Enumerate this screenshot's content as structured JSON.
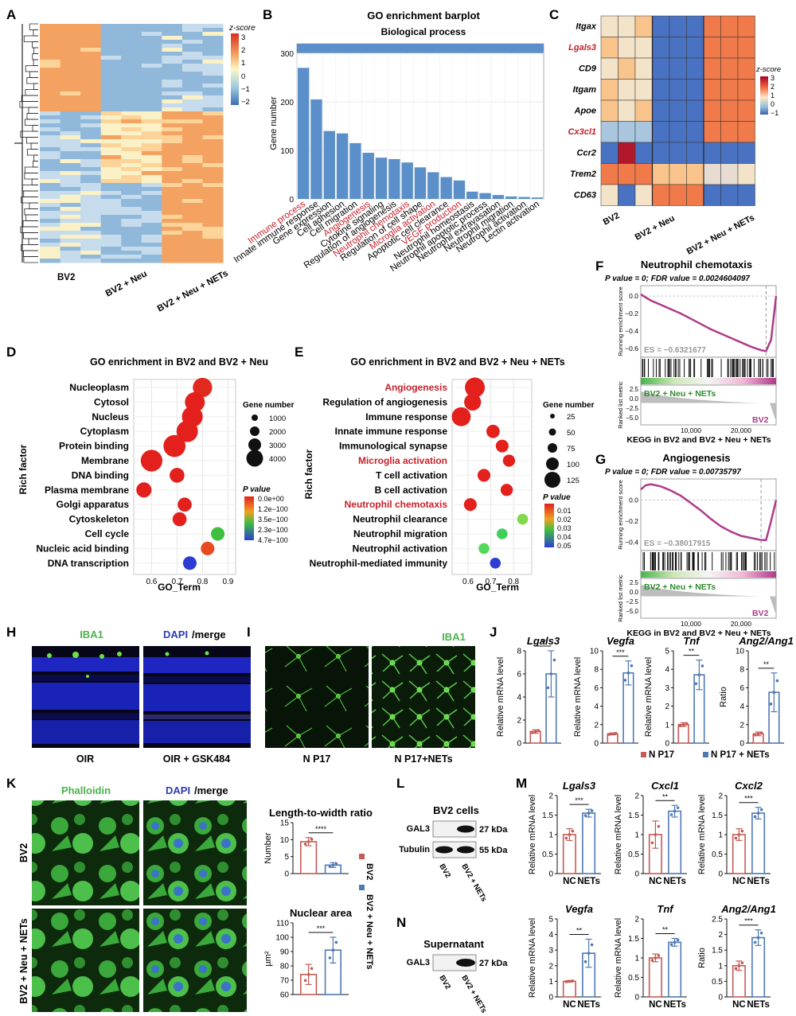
{
  "colors": {
    "bar_blue": "#5b8fc9",
    "red_label": "#c8202a",
    "green_label": "#4ab34a",
    "dapi_blue": "#2e3bb5",
    "ctrl_bar": "#c65a55",
    "treat_bar": "#4f79b5",
    "gsea_line": "#b03a8a"
  },
  "panel_letters": [
    "A",
    "B",
    "C",
    "D",
    "E",
    "F",
    "G",
    "H",
    "I",
    "J",
    "K",
    "L",
    "M",
    "N"
  ],
  "panelA": {
    "scale_title": "z-score",
    "scale_ticks": [
      "3",
      "2",
      "1",
      "0",
      "−1",
      "−2"
    ],
    "groups": [
      "BV2",
      "BV2 + Neu",
      "BV2 + Neu + NETs"
    ]
  },
  "panelB": {
    "title": "GO enrichment barplot",
    "subtitle": "Biological process",
    "ylabel": "Gene number",
    "terms": [
      "Immune process",
      "Innate immune response",
      "Gene expression",
      "Cell adhesion",
      "Cell migration",
      "Angiogenesis",
      "Cytokine signaling",
      "Regulation of angiogenesis",
      "Neutrophil chemotaxis",
      "Regulation of cell shape",
      "Microglia activation",
      "Apoptotic cell clearance",
      "VEGF production",
      "Neutrophil homeostasis",
      "Neutrophil apoptotic process",
      "Neutrophil extravasation",
      "Neutrophil migration",
      "Neutrophil activation",
      "Lectin activation"
    ],
    "highlighted": [
      "Immune process",
      "Angiogenesis",
      "Neutrophil chemotaxis",
      "Microglia activation",
      "VEGF production"
    ]
  },
  "panelC": {
    "genes": [
      "Itgax",
      "Lgals3",
      "CD9",
      "Itgam",
      "Apoe",
      "Cx3cl1",
      "Ccr2",
      "Trem2",
      "CD63"
    ],
    "highlighted": [
      "Lgals3",
      "Cx3cl1"
    ],
    "groups": [
      "BV2",
      "BV2 + Neu",
      "BV2 + Neu + NETs"
    ],
    "scale_title": "z-score",
    "scale_ticks": [
      "3",
      "2",
      "1",
      "0",
      "−1"
    ]
  },
  "panelD": {
    "title": "GO enrichment in BV2 and BV2 + Neu",
    "xlabel": "GO_Term",
    "ylabel": "Rich factor",
    "size_legend_title": "Gene number",
    "size_legend": [
      "1000",
      "2000",
      "3000",
      "4000"
    ],
    "p_legend_title": "P value",
    "p_legend": [
      "0.0e+00",
      "1.2e−100",
      "3.5e−100",
      "2.3e−100",
      "4.7e−100"
    ],
    "xticks": [
      "0.6",
      "0.7",
      "0.8",
      "0.9"
    ]
  },
  "panelE": {
    "title": "GO enrichment in BV2 and BV2 + Neu + NETs",
    "xlabel": "GO_Term",
    "ylabel": "Rich factor",
    "size_legend_title": "Gene number",
    "size_legend": [
      "25",
      "50",
      "75",
      "100",
      "125"
    ],
    "p_legend_title": "P value",
    "p_legend": [
      "0.01",
      "0.02",
      "0.03",
      "0.04",
      "0.05"
    ],
    "xticks": [
      "0.6",
      "0.7",
      "0.8"
    ],
    "highlighted": [
      "Angiogenesis",
      "Microglia activation",
      "Neutrophil chemotaxis"
    ]
  },
  "panelF": {
    "title": "Neutrophil chemotaxis",
    "stats": "P value = 0; FDR value = 0.0024604097",
    "es": "ES = −0.6321677",
    "ylabel_top": "Running enrichment score",
    "ylabel_bottom": "Ranked list metric",
    "yticks_top": [
      "0.0",
      "−0.2",
      "−0.4",
      "−0.6"
    ],
    "yticks_bottom": [
      "2.5",
      "0.0",
      "−2.5",
      "−5.0"
    ],
    "xticks": [
      "10,000",
      "20,000"
    ],
    "group_pos": "BV2 + Neu + NETs",
    "group_neg": "BV2",
    "xlabel": "KEGG in BV2 and BV2 + Neu + NETs"
  },
  "panelG": {
    "title": "Angiogenesis",
    "stats": "P value = 0; FDR value = 0.00735797",
    "es": "ES = −0.38017915",
    "ylabel_top": "Running enrichment score",
    "ylabel_bottom": "Ranked list metric",
    "yticks_top": [
      "0.0",
      "−0.2",
      "−0.4"
    ],
    "yticks_bottom": [
      "2.5",
      "0.0",
      "−2.5",
      "−5.0"
    ],
    "xticks": [
      "10,000",
      "20,000"
    ],
    "group_pos": "BV2 + Neu + NETs",
    "group_neg": "BV2",
    "xlabel": "KEGG in BV2 and BV2 + Neu + NETs"
  },
  "panelH": {
    "label_green": "IBA1",
    "label_blue": "DAPI",
    "label_merge": "/merge",
    "left": "OIR",
    "right": "OIR + GSK484"
  },
  "panelI": {
    "label": "IBA1",
    "left": "N P17",
    "right": "N P17+NETs"
  },
  "panelK": {
    "label_green": "Phalloidin",
    "label_blue": "DAPI",
    "label_merge": "/merge",
    "row1": "BV2",
    "row2": "BV2 + Neu + NETs"
  },
  "panelL": {
    "title": "BV2 cells",
    "bands": [
      "GAL3",
      "Tubulin"
    ],
    "kda": [
      "27 kDa",
      "55 kDa"
    ],
    "lanes": [
      "BV2",
      "BV2 + NETs"
    ]
  },
  "panelM": {
    "title": "Supernatant",
    "bands": [
      "GAL3"
    ],
    "kda": [
      "27 kDa"
    ],
    "lanes": [
      "BV2",
      "BV2 + NETs"
    ]
  },
  "panelJ_legend": [
    "N P17",
    "N P17 + NETs"
  ],
  "panelK_legend": [
    "BV2",
    "BV2 + Neu + NETs"
  ],
  "chart_data": [
    {
      "id": "B",
      "type": "bar",
      "title": "GO enrichment barplot",
      "subtitle": "Biological process",
      "ylabel": "Gene number",
      "categories": [
        "Immune process",
        "Innate immune response",
        "Gene expression",
        "Cell adhesion",
        "Cell migration",
        "Angiogenesis",
        "Cytokine signaling",
        "Regulation of angiogenesis",
        "Neutrophil chemotaxis",
        "Regulation of cell shape",
        "Microglia activation",
        "Apoptotic cell clearance",
        "VEGF production",
        "Neutrophil homeostasis",
        "Neutrophil apoptotic process",
        "Neutrophil extravasation",
        "Neutrophil migration",
        "Neutrophil activation",
        "Lectin activation"
      ],
      "values": [
        270,
        205,
        140,
        135,
        115,
        95,
        85,
        82,
        75,
        65,
        55,
        45,
        38,
        15,
        12,
        8,
        5,
        4,
        3
      ],
      "ylim": [
        0,
        300
      ],
      "yticks": [
        0,
        100,
        200,
        300
      ]
    },
    {
      "id": "C",
      "type": "heatmap",
      "rows": [
        "Itgax",
        "Lgals3",
        "CD9",
        "Itgam",
        "Apoe",
        "Cx3cl1",
        "Ccr2",
        "Trem2",
        "CD63"
      ],
      "values": [
        [
          0.4,
          0.2,
          0.6,
          -1,
          -1,
          -1,
          1.5,
          1.4,
          1.6
        ],
        [
          0.5,
          0.4,
          0.3,
          -1,
          -1,
          -1,
          1.3,
          1.5,
          1.3
        ],
        [
          0.3,
          0.5,
          0.4,
          -1,
          -1,
          -1,
          1.6,
          1.4,
          1.5
        ],
        [
          0.6,
          0.3,
          0.4,
          -1,
          -1,
          -1,
          1.4,
          1.5,
          1.3
        ],
        [
          0.5,
          0.4,
          0.6,
          -1,
          -1,
          -1,
          1.3,
          1.6,
          1.4
        ],
        [
          -0.4,
          -0.3,
          -0.5,
          -1,
          -1,
          -1,
          1.5,
          1.4,
          1.6
        ],
        [
          -0.8,
          3.0,
          -0.6,
          -0.9,
          -0.7,
          -0.9,
          -0.6,
          -0.8,
          -0.7
        ],
        [
          1.5,
          1.4,
          1.6,
          0.8,
          0.9,
          0.7,
          0.1,
          0.0,
          0.2
        ],
        [
          0.4,
          -0.6,
          0.2,
          1.4,
          1.5,
          1.6,
          -1,
          -0.9,
          -1
        ]
      ]
    },
    {
      "id": "D",
      "type": "scatter",
      "terms": [
        "Nucleoplasm",
        "Cytosol",
        "Nucleus",
        "Cytoplasm",
        "Protein binding",
        "Membrane",
        "DNA binding",
        "Plasma membrane",
        "Golgi apparatus",
        "Cytoskeleton",
        "Cell cycle",
        "Nucleic acid binding",
        "DNA transcription"
      ],
      "x": [
        0.8,
        0.77,
        0.76,
        0.74,
        0.69,
        0.6,
        0.7,
        0.57,
        0.73,
        0.71,
        0.86,
        0.82,
        0.75
      ],
      "size": [
        2600,
        2800,
        3200,
        3500,
        3800,
        3600,
        1100,
        1200,
        900,
        900,
        800,
        800,
        800
      ],
      "colors": [
        "#e02a1e",
        "#e3201c",
        "#e3201c",
        "#e3201c",
        "#e3201c",
        "#e3201c",
        "#e3201c",
        "#e3201c",
        "#e3201c",
        "#e3201c",
        "#3fbf3f",
        "#e84a1e",
        "#2d3dd4"
      ],
      "xlim": [
        0.53,
        0.93
      ]
    },
    {
      "id": "E",
      "type": "scatter",
      "terms": [
        "Angiogenesis",
        "Regulation of angiogenesis",
        "Immune response",
        "Innate immune response",
        "Immunological synapse",
        "Microglia activation",
        "T cell activation",
        "B cell activation",
        "Neutrophil chemotaxis",
        "Neutrophil clearance",
        "Neutrophil migration",
        "Neutrophil activation",
        "Neutrophil-mediated immunity"
      ],
      "x": [
        0.63,
        0.62,
        0.57,
        0.71,
        0.75,
        0.78,
        0.67,
        0.77,
        0.61,
        0.84,
        0.75,
        0.67,
        0.72
      ],
      "size": [
        125,
        80,
        110,
        40,
        35,
        30,
        35,
        30,
        35,
        20,
        20,
        20,
        20
      ],
      "colors": [
        "#e3201c",
        "#e3201c",
        "#e3201c",
        "#e3201c",
        "#e3201c",
        "#e3201c",
        "#e3201c",
        "#e3201c",
        "#e3201c",
        "#7fd94a",
        "#3fcf5a",
        "#55d95a",
        "#2d3dd4"
      ],
      "xlim": [
        0.53,
        0.88
      ]
    },
    {
      "id": "F",
      "type": "line",
      "title": "Neutrophil chemotaxis",
      "x": [
        0,
        2000,
        4000,
        6000,
        8000,
        10000,
        12000,
        14000,
        16000,
        18000,
        20000,
        22000,
        24000,
        25000,
        26000,
        27000
      ],
      "y": [
        0.02,
        -0.05,
        -0.1,
        -0.15,
        -0.2,
        -0.26,
        -0.32,
        -0.38,
        -0.43,
        -0.48,
        -0.53,
        -0.58,
        -0.62,
        -0.63,
        -0.5,
        0.0
      ],
      "xlim": [
        0,
        27000
      ],
      "ylim": [
        -0.7,
        0.12
      ]
    },
    {
      "id": "G",
      "type": "line",
      "title": "Angiogenesis",
      "x": [
        0,
        1000,
        2000,
        4000,
        6000,
        8000,
        10000,
        12000,
        14000,
        16000,
        18000,
        20000,
        22000,
        24000,
        25000,
        26000,
        27000
      ],
      "y": [
        0.1,
        0.14,
        0.15,
        0.13,
        0.09,
        0.04,
        -0.03,
        -0.1,
        -0.18,
        -0.25,
        -0.3,
        -0.34,
        -0.36,
        -0.38,
        -0.38,
        -0.2,
        0.0
      ],
      "xlim": [
        0,
        27000
      ],
      "ylim": [
        -0.48,
        0.2
      ]
    },
    {
      "id": "J",
      "type": "bar",
      "panels": [
        {
          "title": "Lgals3",
          "ylabel": "Relative mRNA level",
          "categories": [
            "N P17",
            "N P17 + NETs"
          ],
          "values": [
            1,
            6
          ],
          "err": [
            0.15,
            2
          ],
          "ylim": [
            0,
            8
          ],
          "yticks": [
            0,
            2,
            4,
            6,
            8
          ],
          "sig": "**"
        },
        {
          "title": "Vegfa",
          "ylabel": "Relative mRNA level",
          "categories": [
            "N P17",
            "N P17 + NETs"
          ],
          "values": [
            1,
            7.6
          ],
          "err": [
            0.1,
            1.3
          ],
          "ylim": [
            0,
            10
          ],
          "yticks": [
            0,
            2,
            4,
            6,
            8,
            10
          ],
          "sig": "***"
        },
        {
          "title": "Tnf",
          "ylabel": "Relative mRNA level",
          "categories": [
            "N P17",
            "N P17 + NETs"
          ],
          "values": [
            1,
            3.7
          ],
          "err": [
            0.1,
            0.8
          ],
          "ylim": [
            0,
            5
          ],
          "yticks": [
            0,
            1,
            2,
            3,
            4,
            5
          ],
          "sig": "**"
        },
        {
          "title": "Ang2/Ang1",
          "ylabel": "Ratio",
          "categories": [
            "N P17",
            "N P17 + NETs"
          ],
          "values": [
            1,
            5.5
          ],
          "err": [
            0.2,
            2.1
          ],
          "ylim": [
            0,
            10
          ],
          "yticks": [
            0,
            2,
            4,
            6,
            8,
            10
          ],
          "sig": "**"
        }
      ]
    },
    {
      "id": "K",
      "type": "bar",
      "panels": [
        {
          "title": "Length-to-width ratio",
          "ylabel": "Number",
          "categories": [
            "BV2",
            "BV2 + Neu + NETs"
          ],
          "values": [
            9.4,
            2.5
          ],
          "err": [
            1.2,
            0.7
          ],
          "ylim": [
            0,
            15
          ],
          "yticks": [
            0,
            5,
            10,
            15
          ],
          "sig": "****"
        },
        {
          "title": "Nuclear area",
          "ylabel": "µm²",
          "categories": [
            "BV2",
            "BV2 + Neu + NETs"
          ],
          "values": [
            74,
            91
          ],
          "err": [
            7,
            9
          ],
          "ylim": [
            60,
            110
          ],
          "yticks": [
            60,
            70,
            80,
            90,
            100,
            110
          ],
          "sig": "***"
        }
      ]
    },
    {
      "id": "N",
      "type": "bar",
      "panels": [
        {
          "title": "Lgals3",
          "ylabel": "Relative mRNA level",
          "categories": [
            "NC",
            "NETs"
          ],
          "values": [
            1.0,
            1.55
          ],
          "err": [
            0.15,
            0.1
          ],
          "ylim": [
            0,
            2.0
          ],
          "yticks": [
            0,
            0.5,
            1.0,
            1.5,
            2.0
          ],
          "sig": "***"
        },
        {
          "title": "Cxcl1",
          "ylabel": "Relative mRNA level",
          "categories": [
            "NC",
            "NETs"
          ],
          "values": [
            1.0,
            1.6
          ],
          "err": [
            0.35,
            0.15
          ],
          "ylim": [
            0,
            2.0
          ],
          "yticks": [
            0,
            0.5,
            1.0,
            1.5,
            2.0
          ],
          "sig": "**"
        },
        {
          "title": "Cxcl2",
          "ylabel": "Relative mRNA level",
          "categories": [
            "NC",
            "NETs"
          ],
          "values": [
            1.0,
            1.55
          ],
          "err": [
            0.15,
            0.15
          ],
          "ylim": [
            0,
            2.0
          ],
          "yticks": [
            0,
            0.5,
            1.0,
            1.5,
            2.0
          ],
          "sig": "***"
        },
        {
          "title": "Vegfa",
          "ylabel": "Relative mRNA level",
          "categories": [
            "NC",
            "NETs"
          ],
          "values": [
            1.0,
            2.8
          ],
          "err": [
            0.05,
            0.9
          ],
          "ylim": [
            0,
            5
          ],
          "yticks": [
            0,
            1,
            2,
            3,
            4,
            5
          ],
          "sig": "**"
        },
        {
          "title": "Tnf",
          "ylabel": "Relative mRNA level",
          "categories": [
            "NC",
            "NETs"
          ],
          "values": [
            1.0,
            1.4
          ],
          "err": [
            0.1,
            0.1
          ],
          "ylim": [
            0,
            2.0
          ],
          "yticks": [
            0,
            0.5,
            1.0,
            1.5,
            2.0
          ],
          "sig": "**"
        },
        {
          "title": "Ang2/Ang1",
          "ylabel": "Ratio",
          "categories": [
            "NC",
            "NETs"
          ],
          "values": [
            1.0,
            1.9
          ],
          "err": [
            0.15,
            0.25
          ],
          "ylim": [
            0,
            2.5
          ],
          "yticks": [
            0,
            0.5,
            1.0,
            1.5,
            2.0,
            2.5
          ],
          "sig": "***"
        }
      ]
    }
  ]
}
